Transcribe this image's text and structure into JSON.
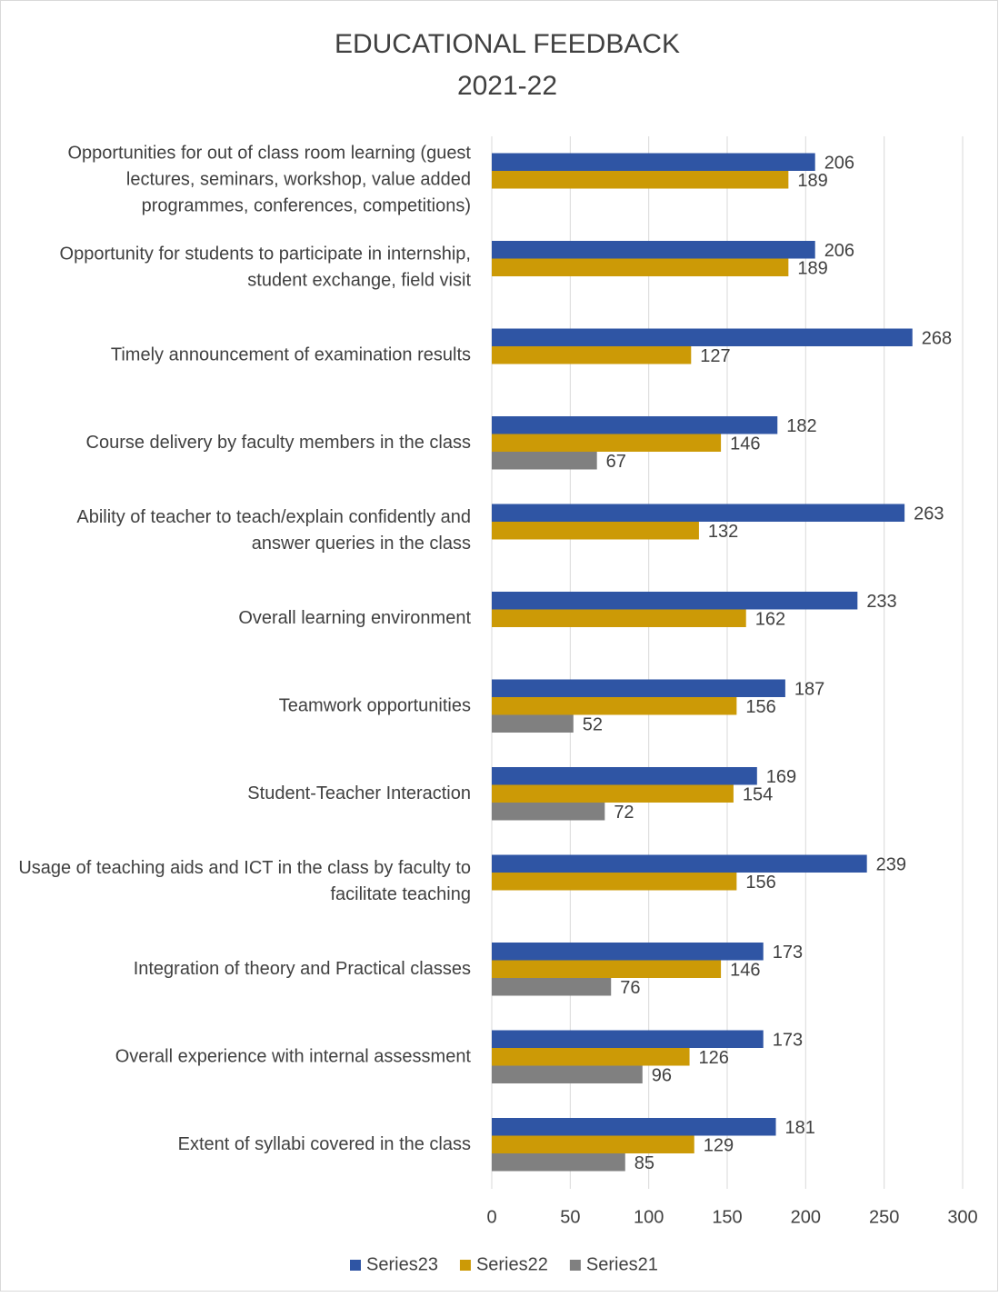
{
  "chart_data": {
    "type": "hbar",
    "title": "EDUCATIONAL FEEDBACK",
    "subtitle": "2021-22",
    "categories": [
      "Opportunities for out of class room learning (guest lectures, seminars, workshop, value added programmes, conferences, competitions)",
      "Opportunity for students to participate in internship, student exchange, field visit",
      "Timely announcement of examination results",
      "Course delivery by faculty members in the class",
      "Ability of teacher to teach/explain confidently and answer queries in the class",
      "Overall learning environment",
      "Teamwork opportunities",
      "Student-Teacher Interaction",
      "Usage of teaching aids and ICT in the class by faculty to facilitate teaching",
      "Integration of theory and Practical classes",
      "Overall experience with internal assessment",
      "Extent of syllabi covered in the class"
    ],
    "series": [
      {
        "name": "Series23",
        "color": "#2f55a4",
        "values": [
          206,
          206,
          268,
          182,
          263,
          233,
          187,
          169,
          239,
          173,
          173,
          181
        ]
      },
      {
        "name": "Series22",
        "color": "#cc9a06",
        "values": [
          189,
          189,
          127,
          146,
          132,
          162,
          156,
          154,
          156,
          146,
          126,
          129
        ]
      },
      {
        "name": "Series21",
        "color": "#808080",
        "values": [
          null,
          null,
          null,
          67,
          null,
          null,
          52,
          72,
          null,
          76,
          96,
          85
        ]
      }
    ],
    "xlim": [
      0,
      300
    ],
    "xticks": [
      0,
      50,
      100,
      150,
      200,
      250,
      300
    ],
    "grid": true,
    "legend": "bottom"
  }
}
